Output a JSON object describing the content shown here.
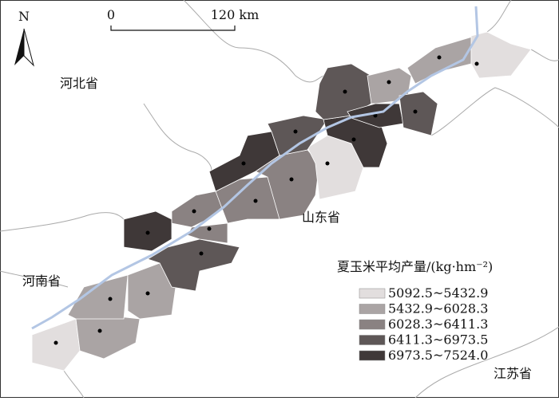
{
  "north": "N",
  "scale": {
    "start": "0",
    "end": "120 km"
  },
  "places": {
    "hebei": "河北省",
    "shandong": "山东省",
    "henan": "河南省",
    "jiangsu": "江苏省"
  },
  "legend": {
    "title": "夏玉米平均产量/(kg·hm⁻²)",
    "items": [
      {
        "label": "5092.5~5432.9",
        "color": "#e2dede"
      },
      {
        "label": "5432.9~6028.3",
        "color": "#aaa4a4"
      },
      {
        "label": "6028.3~6411.3",
        "color": "#8a8282"
      },
      {
        "label": "6411.3~6973.5",
        "color": "#5e5757"
      },
      {
        "label": "6973.5~7524.0",
        "color": "#3f3838"
      }
    ]
  }
}
